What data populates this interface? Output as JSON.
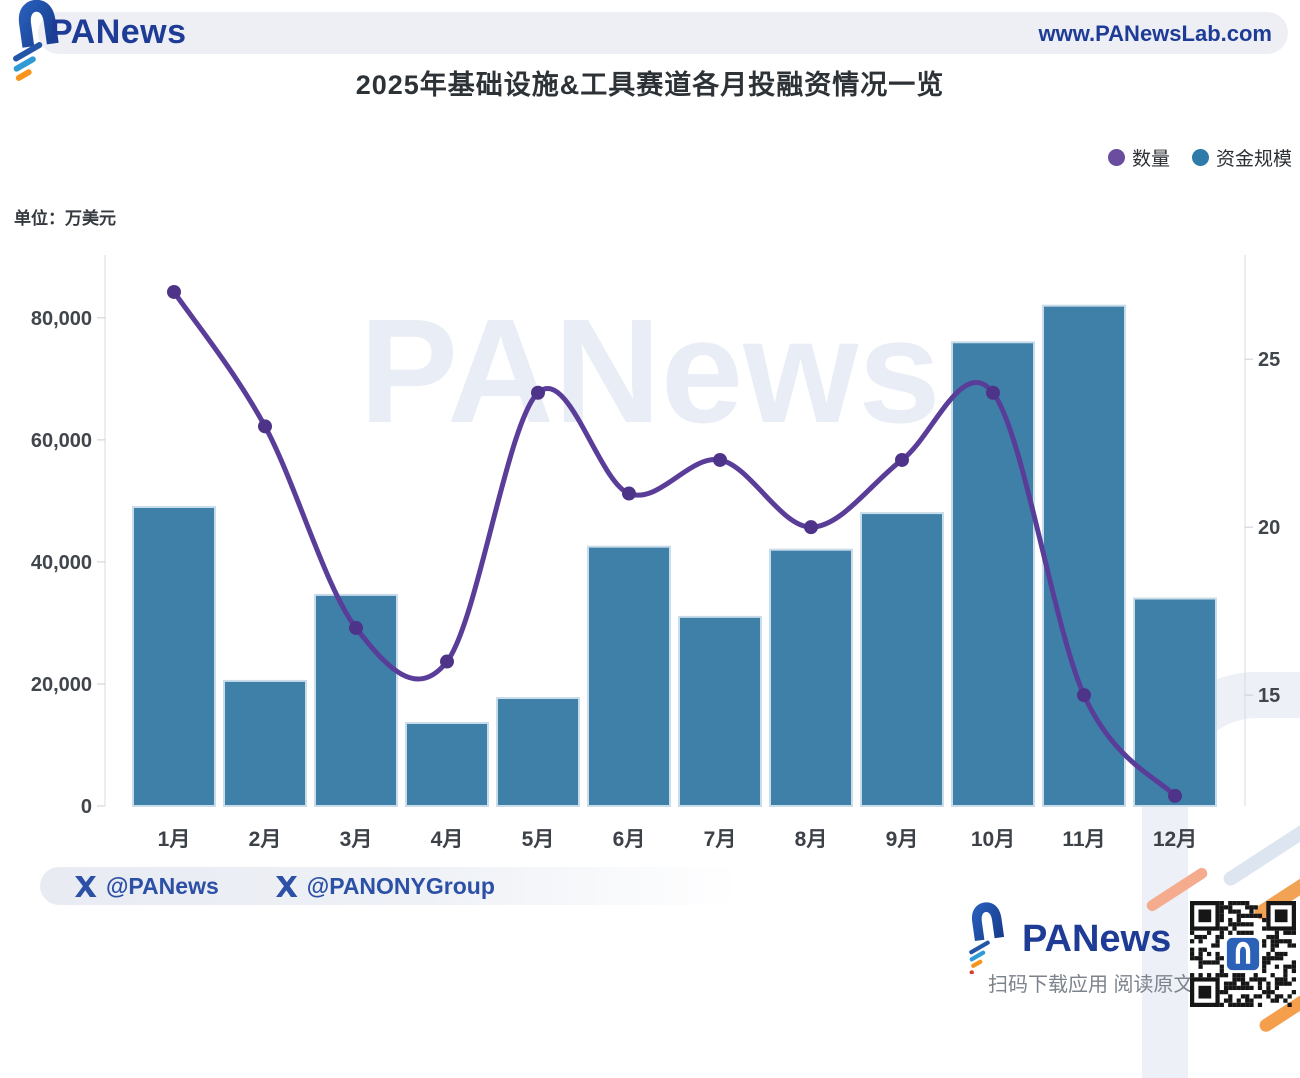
{
  "brand": {
    "name": "PANews",
    "website": "www.PANewsLab.com"
  },
  "title": "2025年基础设施&工具赛道各月投融资情况一览",
  "unit_label": "单位：万美元",
  "watermark": "PANews",
  "legend": {
    "count_label": "数量",
    "funding_label": "资金规模"
  },
  "colors": {
    "bar_fill": "#3e80a8",
    "bar_stroke": "#c9dcea",
    "line_purple": "#5a3d99",
    "marker_purple": "#4e3489",
    "legend_count_dot": "#6a4d9f",
    "legend_funding_dot": "#2e7aa8",
    "brand_blue": "#1e3c96",
    "handle_blue": "#2b50a6"
  },
  "chart_data": {
    "type": "bar+line",
    "title": "2025年基础设施&工具赛道各月投融资情况一览",
    "unit": "万美元",
    "categories": [
      "1月",
      "2月",
      "3月",
      "4月",
      "5月",
      "6月",
      "7月",
      "8月",
      "9月",
      "10月",
      "11月",
      "12月"
    ],
    "series": [
      {
        "name": "资金规模",
        "type": "bar",
        "y_axis": "left",
        "color": "#3e80a8",
        "values": [
          49000,
          20500,
          34600,
          13600,
          17700,
          42500,
          31000,
          42000,
          48000,
          76000,
          82000,
          34000
        ]
      },
      {
        "name": "数量",
        "type": "line",
        "y_axis": "right",
        "color": "#5a3d99",
        "values": [
          27,
          23,
          17,
          16,
          24,
          21,
          22,
          20,
          22,
          24,
          15,
          12
        ]
      }
    ],
    "left_axis": {
      "tick_values": [
        0,
        20000,
        40000,
        60000,
        80000
      ],
      "tick_labels": [
        "0",
        "20,000",
        "40,000",
        "60,000",
        "80,000"
      ],
      "min": 0,
      "max": 90300
    },
    "right_axis": {
      "tick_values": [
        15,
        20,
        25
      ],
      "tick_labels": [
        "15",
        "20",
        "25"
      ],
      "min": 11.7,
      "max": 28.1
    },
    "grid": false,
    "legend_position": "top-right"
  },
  "footer": {
    "x_handle_1": "@PANews",
    "x_handle_2": "@PANONYGroup",
    "brand": "PANews",
    "caption": "扫码下载应用  阅读原文"
  }
}
